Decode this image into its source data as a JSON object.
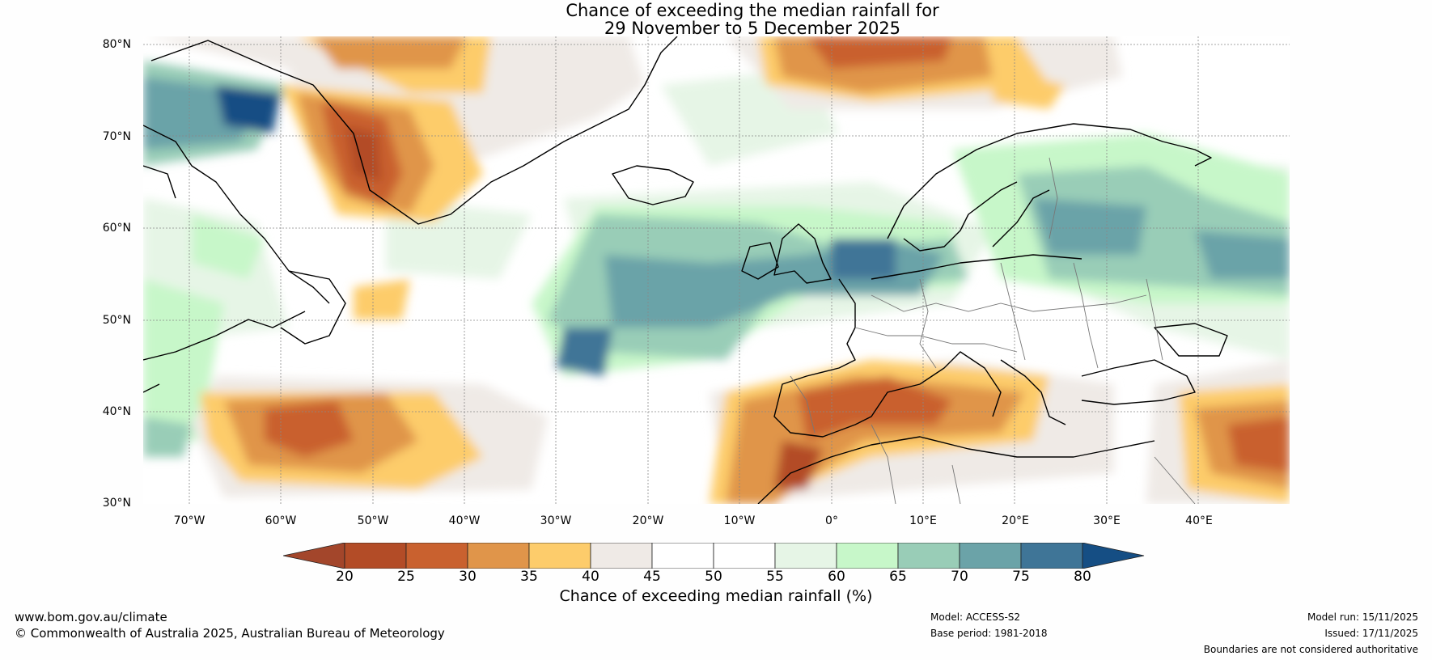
{
  "title": {
    "line1": "Chance of exceeding the median rainfall for",
    "line2": "29 November to 5 December 2025"
  },
  "map": {
    "lat_labels": [
      "80°N",
      "70°N",
      "60°N",
      "50°N",
      "40°N",
      "30°N"
    ],
    "lon_labels": [
      "70°W",
      "60°W",
      "50°W",
      "40°W",
      "30°W",
      "20°W",
      "10°W",
      "0°",
      "10°E",
      "20°E",
      "30°E",
      "40°E"
    ]
  },
  "colorbar": {
    "ticks": [
      "20",
      "25",
      "30",
      "35",
      "40",
      "45",
      "50",
      "55",
      "60",
      "65",
      "70",
      "75",
      "80"
    ],
    "colors": [
      "#a3462b",
      "#b34c27",
      "#c9612f",
      "#e0954a",
      "#fdcc6b",
      "#efeae6",
      "#ffffff",
      "#ffffff",
      "#e6f5e6",
      "#c7f7c9",
      "#99cdb7",
      "#6ba3a8",
      "#3f7597",
      "#154e84"
    ],
    "label": "Chance of exceeding median rainfall (%)"
  },
  "footer": {
    "website": "www.bom.gov.au/climate",
    "copyright": "© Commonwealth of Australia 2025, Australian Bureau of Meteorology",
    "model": "Model: ACCESS-S2",
    "base_period": "Base period: 1981-2018",
    "model_run": "Model run: 15/11/2025",
    "issued": "Issued: 17/11/2025",
    "disclaimer": "Boundaries are not considered authoritative"
  }
}
